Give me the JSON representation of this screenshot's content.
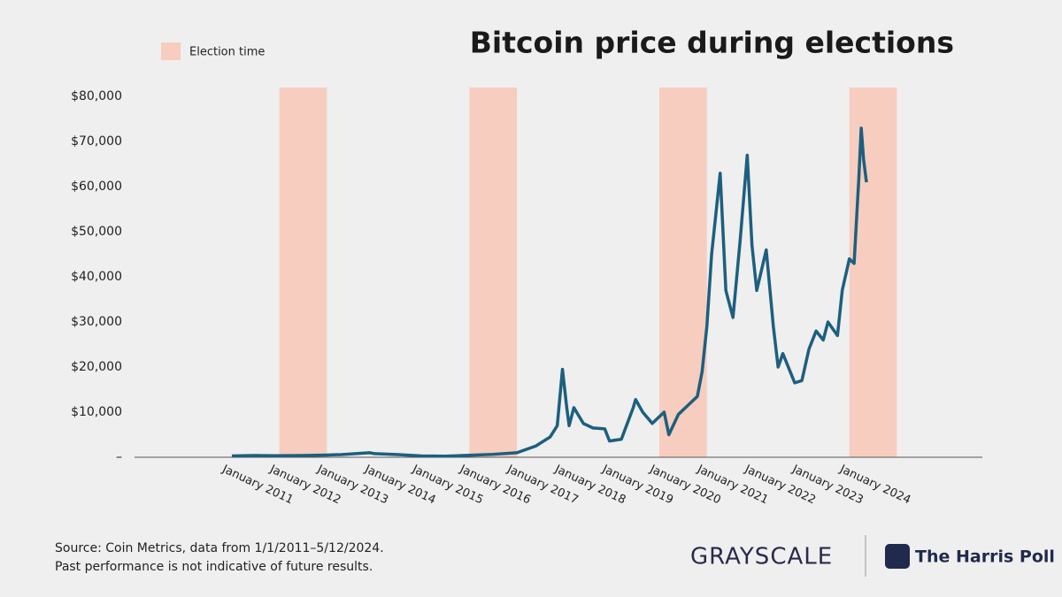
{
  "chart_data": {
    "type": "line",
    "title": "Bitcoin price during elections",
    "legend": {
      "label": "Election time",
      "color": "#f6cdbf",
      "position": "top-left"
    },
    "election_periods": [
      [
        2012,
        2013
      ],
      [
        2016,
        2017
      ],
      [
        2020,
        2021
      ],
      [
        2024,
        2025
      ]
    ],
    "x": [
      2011.0,
      2011.45,
      2011.9,
      2012.5,
      2013.0,
      2013.3,
      2013.9,
      2014.0,
      2014.5,
      2015.0,
      2015.5,
      2016.0,
      2016.5,
      2017.0,
      2017.4,
      2017.7,
      2017.85,
      2017.96,
      2018.05,
      2018.1,
      2018.2,
      2018.4,
      2018.6,
      2018.85,
      2018.95,
      2019.2,
      2019.45,
      2019.5,
      2019.65,
      2019.85,
      2020.1,
      2020.2,
      2020.4,
      2020.6,
      2020.8,
      2020.9,
      2021.0,
      2021.1,
      2021.28,
      2021.4,
      2021.55,
      2021.7,
      2021.85,
      2021.95,
      2022.05,
      2022.25,
      2022.4,
      2022.5,
      2022.6,
      2022.85,
      2023.0,
      2023.15,
      2023.3,
      2023.45,
      2023.55,
      2023.75,
      2023.85,
      2024.0,
      2024.1,
      2024.2,
      2024.25,
      2024.3,
      2024.36
    ],
    "series": [
      {
        "name": "Bitcoin price",
        "color": "#1d5f7e",
        "values": [
          300,
          400,
          350,
          400,
          500,
          600,
          1000,
          800,
          600,
          300,
          250,
          430,
          650,
          1000,
          2500,
          4500,
          7000,
          19500,
          11000,
          7000,
          11000,
          7500,
          6500,
          6300,
          3600,
          4000,
          11000,
          12800,
          10000,
          7500,
          10000,
          5000,
          9500,
          11500,
          13500,
          19000,
          29000,
          45000,
          63000,
          37000,
          31000,
          48000,
          67000,
          47000,
          37000,
          46000,
          29000,
          20000,
          23000,
          16500,
          17000,
          24000,
          28000,
          26000,
          30000,
          27000,
          37000,
          44000,
          43000,
          62000,
          73000,
          66000,
          61000
        ]
      }
    ],
    "xlim": [
      2008.95,
      2026.8
    ],
    "xticks": [
      {
        "value": 2011,
        "label": "January 2011"
      },
      {
        "value": 2012,
        "label": "January 2012"
      },
      {
        "value": 2013,
        "label": "January 2013"
      },
      {
        "value": 2014,
        "label": "January 2014"
      },
      {
        "value": 2015,
        "label": "January 2015"
      },
      {
        "value": 2016,
        "label": "January 2016"
      },
      {
        "value": 2017,
        "label": "January 2017"
      },
      {
        "value": 2018,
        "label": "January 2018"
      },
      {
        "value": 2019,
        "label": "January 2019"
      },
      {
        "value": 2020,
        "label": "January 2020"
      },
      {
        "value": 2021,
        "label": "January 2021"
      },
      {
        "value": 2022,
        "label": "January 2022"
      },
      {
        "value": 2023,
        "label": "January 2023"
      },
      {
        "value": 2024,
        "label": "January 2024"
      }
    ],
    "ylim": [
      0,
      82000
    ],
    "yticks": [
      {
        "value": 0,
        "label": "–"
      },
      {
        "value": 10000,
        "label": "$10,000"
      },
      {
        "value": 20000,
        "label": "$20,000"
      },
      {
        "value": 30000,
        "label": "$30,000"
      },
      {
        "value": 40000,
        "label": "$40,000"
      },
      {
        "value": 50000,
        "label": "$50,000"
      },
      {
        "value": 60000,
        "label": "$60,000"
      },
      {
        "value": 70000,
        "label": "$70,000"
      },
      {
        "value": 80000,
        "label": "$80,000"
      }
    ],
    "grid": false
  },
  "footer": {
    "source": [
      "Source: Coin Metrics, data from 1/1/2011–5/12/2024.",
      "Past performance is not indicative of future results."
    ],
    "logos": [
      "GRAYSCALE",
      "The Harris Poll"
    ]
  }
}
